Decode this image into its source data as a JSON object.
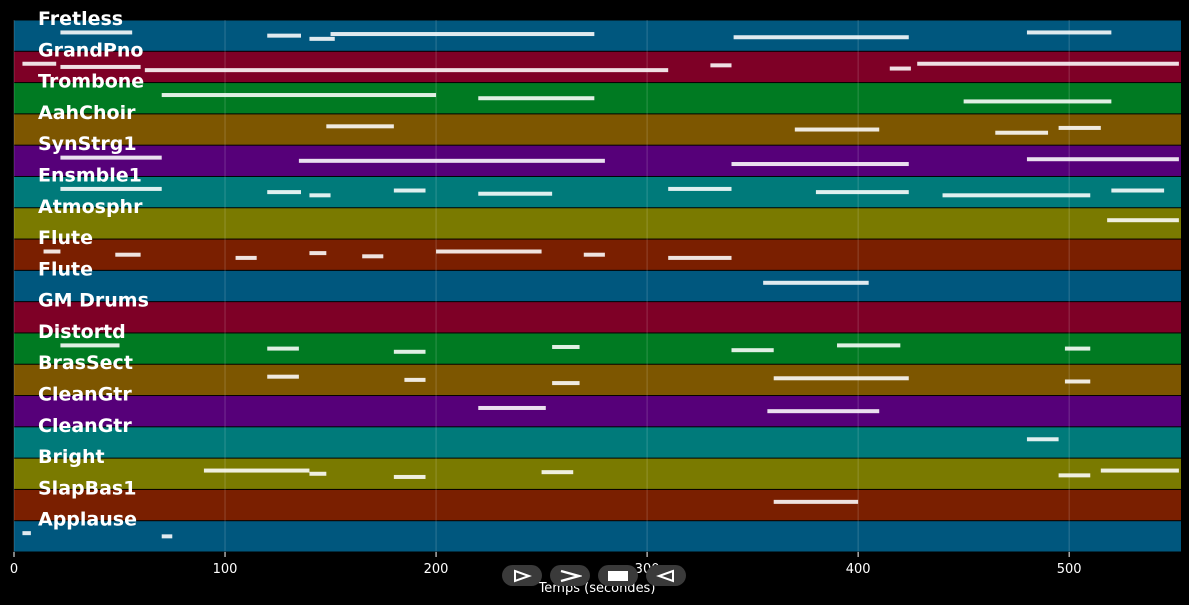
{
  "chart_data": {
    "type": "piano-roll",
    "xlabel": "Temps (secondes)",
    "xlim": [
      0,
      553
    ],
    "xticks": [
      0,
      100,
      200,
      300,
      400,
      500
    ],
    "grid": true,
    "tracks": [
      {
        "name": "Fretless",
        "color": "#00577e",
        "notes": [
          [
            22,
            56
          ],
          [
            120,
            136
          ],
          [
            140,
            152
          ],
          [
            150,
            275
          ],
          [
            341,
            424
          ],
          [
            480,
            520
          ]
        ]
      },
      {
        "name": "GrandPno",
        "color": "#7e0026",
        "notes": [
          [
            4,
            20
          ],
          [
            22,
            60
          ],
          [
            62,
            310
          ],
          [
            330,
            340
          ],
          [
            415,
            425
          ],
          [
            428,
            552
          ]
        ]
      },
      {
        "name": "Trombone",
        "color": "#007a22",
        "notes": [
          [
            70,
            200
          ],
          [
            220,
            275
          ],
          [
            450,
            520
          ]
        ]
      },
      {
        "name": "AahChoir",
        "color": "#7d5600",
        "notes": [
          [
            148,
            180
          ],
          [
            370,
            410
          ],
          [
            465,
            490
          ],
          [
            495,
            515
          ]
        ]
      },
      {
        "name": "SynStrg1",
        "color": "#560079",
        "notes": [
          [
            22,
            70
          ],
          [
            135,
            280
          ],
          [
            340,
            424
          ],
          [
            480,
            552
          ]
        ]
      },
      {
        "name": "Ensmble1",
        "color": "#007a7a",
        "notes": [
          [
            22,
            70
          ],
          [
            120,
            136
          ],
          [
            140,
            150
          ],
          [
            180,
            195
          ],
          [
            220,
            255
          ],
          [
            310,
            340
          ],
          [
            380,
            424
          ],
          [
            440,
            510
          ],
          [
            520,
            545
          ]
        ]
      },
      {
        "name": "Atmosphr",
        "color": "#7a7a00",
        "notes": [
          [
            518,
            552
          ]
        ]
      },
      {
        "name": "Flute",
        "color": "#7a1f00",
        "notes": [
          [
            14,
            22
          ],
          [
            48,
            60
          ],
          [
            105,
            115
          ],
          [
            140,
            148
          ],
          [
            165,
            175
          ],
          [
            200,
            250
          ],
          [
            270,
            280
          ],
          [
            310,
            340
          ]
        ]
      },
      {
        "name": "Flute",
        "color": "#00577e",
        "notes": [
          [
            355,
            405
          ]
        ]
      },
      {
        "name": "GM Drums",
        "color": "#7e0026",
        "notes": []
      },
      {
        "name": "Distortd",
        "color": "#007a22",
        "notes": [
          [
            22,
            50
          ],
          [
            120,
            135
          ],
          [
            180,
            195
          ],
          [
            255,
            268
          ],
          [
            340,
            360
          ],
          [
            390,
            420
          ],
          [
            498,
            510
          ]
        ]
      },
      {
        "name": "BrasSect",
        "color": "#7d5600",
        "notes": [
          [
            120,
            135
          ],
          [
            185,
            195
          ],
          [
            255,
            268
          ],
          [
            360,
            424
          ],
          [
            498,
            510
          ]
        ]
      },
      {
        "name": "CleanGtr",
        "color": "#560079",
        "notes": [
          [
            220,
            252
          ],
          [
            357,
            410
          ]
        ]
      },
      {
        "name": "CleanGtr",
        "color": "#007a7a",
        "notes": [
          [
            480,
            495
          ]
        ]
      },
      {
        "name": "Bright",
        "color": "#7a7a00",
        "notes": [
          [
            90,
            140
          ],
          [
            140,
            148
          ],
          [
            180,
            195
          ],
          [
            250,
            265
          ],
          [
            495,
            510
          ],
          [
            515,
            552
          ]
        ]
      },
      {
        "name": "SlapBas1",
        "color": "#7a1f00",
        "notes": [
          [
            360,
            400
          ]
        ]
      },
      {
        "name": "Applause",
        "color": "#00577e",
        "notes": [
          [
            4,
            8
          ],
          [
            70,
            75
          ]
        ]
      }
    ]
  },
  "controls": {
    "buttons": [
      {
        "name": "play",
        "icon": "play-outline-icon"
      },
      {
        "name": "forward",
        "icon": "chevron-right-icon"
      },
      {
        "name": "stop",
        "icon": "stop-square-icon"
      },
      {
        "name": "rewind",
        "icon": "rewind-triangle-icon"
      }
    ]
  }
}
